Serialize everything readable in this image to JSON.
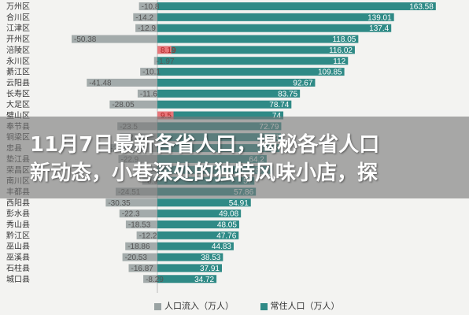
{
  "chart_data": {
    "type": "bar",
    "orientation": "horizontal",
    "categories": [
      "万州区",
      "合川区",
      "江津区",
      "开州区",
      "涪陵区",
      "永川区",
      "綦江区",
      "云阳县",
      "长寿区",
      "大足区",
      "璧山区",
      "奉节县",
      "铜梁区",
      "忠县",
      "垫江县",
      "荣昌区",
      "南川区",
      "丰都县",
      "西阳县",
      "彭水县",
      "秀山县",
      "黔江区",
      "巫山县",
      "巫溪县",
      "石柱县",
      "城口县"
    ],
    "series": [
      {
        "name": "人口流入（万人）",
        "color": "#9aa3a3",
        "values": [
          -10.8,
          -14.2,
          -12.9,
          -50.38,
          8.19,
          -1.97,
          -10.1,
          -41.48,
          -11.6,
          -28.05,
          9.5,
          -23.5,
          -22.0,
          -29.0,
          -22.9,
          -3.9,
          -8.9,
          -24.51,
          -30.35,
          -22.3,
          -18.53,
          -12.2,
          -18.86,
          -20.53,
          -16.87,
          -8.29
        ]
      },
      {
        "name": "常住人口（万人）",
        "color": "#2f8a86",
        "values": [
          163.58,
          139.01,
          137.4,
          118.05,
          116.02,
          112.0,
          109.85,
          92.67,
          83.75,
          78.74,
          74,
          72.79,
          72.54,
          71.8,
          64.2,
          67.7,
          57.0,
          57.86,
          54.91,
          49.08,
          48.05,
          47.76,
          44.83,
          38.53,
          37.91,
          34.72
        ]
      }
    ],
    "highlight_color": "#e8767a",
    "xlim": [
      -60,
      170
    ],
    "legend": "bottom"
  },
  "banner": {
    "line1": "11月7日最新各省人口，揭秘各省人口",
    "line2": "新动态，小巷深处的独特风味小店，探"
  },
  "legend": {
    "inflow_label": "人口流入（万人）",
    "resident_label": "常住人口（万人）"
  }
}
